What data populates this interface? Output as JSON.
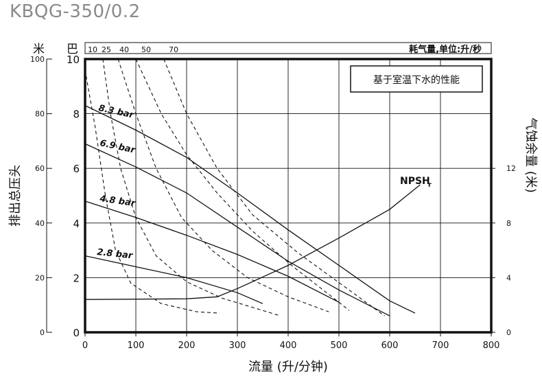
{
  "title": "KBQG-350/0.2",
  "chart_data": {
    "type": "line",
    "title": "KBQG-350/0.2",
    "xlabel": "流量 (升/分钟)",
    "ylabel_left_outer": "排出总压头",
    "ylabel_left_outer_unit": "米",
    "ylabel_left_inner_unit": "巴",
    "ylabel_right": "气蚀余量 (米)",
    "top_axis_label": "耗气量,单位:升/秒",
    "legend_note": "基于室温下水的性能",
    "xlim": [
      0,
      800
    ],
    "ylim_bar": [
      0,
      10
    ],
    "ylim_meter": [
      0,
      100
    ],
    "ylim_npsh": [
      0,
      20
    ],
    "x_ticks": [
      "0",
      "100",
      "200",
      "300",
      "400",
      "500",
      "600",
      "700",
      "800"
    ],
    "y_ticks_bar": [
      "0",
      "2",
      "4",
      "6",
      "8",
      "10"
    ],
    "y_ticks_meter": [
      "0",
      "20",
      "40",
      "60",
      "80",
      "100"
    ],
    "y_ticks_npsh": [
      "0",
      "4",
      "8",
      "12"
    ],
    "air_ticks": [
      "10",
      "25",
      "40",
      "50",
      "70"
    ],
    "pressure_series": [
      {
        "name": "8.3 bar",
        "points": [
          [
            0,
            8.3
          ],
          [
            100,
            7.4
          ],
          [
            200,
            6.4
          ],
          [
            300,
            5.1
          ],
          [
            400,
            3.75
          ],
          [
            500,
            2.45
          ],
          [
            600,
            1.15
          ],
          [
            650,
            0.7
          ]
        ]
      },
      {
        "name": "6.9 bar",
        "points": [
          [
            0,
            6.9
          ],
          [
            100,
            6.05
          ],
          [
            200,
            5.1
          ],
          [
            300,
            3.85
          ],
          [
            400,
            2.6
          ],
          [
            500,
            1.55
          ],
          [
            600,
            0.6
          ]
        ]
      },
      {
        "name": "4.8 bar",
        "points": [
          [
            0,
            4.8
          ],
          [
            100,
            4.2
          ],
          [
            200,
            3.55
          ],
          [
            300,
            2.85
          ],
          [
            400,
            2.05
          ],
          [
            500,
            1.1
          ]
        ]
      },
      {
        "name": "2.8 bar",
        "points": [
          [
            0,
            2.8
          ],
          [
            100,
            2.4
          ],
          [
            200,
            2.0
          ],
          [
            300,
            1.45
          ],
          [
            350,
            1.05
          ]
        ]
      }
    ],
    "air_series": [
      {
        "name": "10",
        "points": [
          [
            0,
            9.6
          ],
          [
            20,
            7.5
          ],
          [
            40,
            5.0
          ],
          [
            60,
            3.0
          ],
          [
            90,
            1.8
          ],
          [
            150,
            1.05
          ],
          [
            220,
            0.75
          ],
          [
            265,
            0.7
          ]
        ]
      },
      {
        "name": "25",
        "points": [
          [
            35,
            10
          ],
          [
            50,
            8.0
          ],
          [
            70,
            6.0
          ],
          [
            100,
            4.2
          ],
          [
            140,
            2.8
          ],
          [
            200,
            1.85
          ],
          [
            270,
            1.25
          ],
          [
            350,
            0.8
          ],
          [
            385,
            0.6
          ]
        ]
      },
      {
        "name": "40",
        "points": [
          [
            65,
            10
          ],
          [
            100,
            8.0
          ],
          [
            140,
            6.0
          ],
          [
            190,
            4.2
          ],
          [
            250,
            3.0
          ],
          [
            320,
            2.0
          ],
          [
            400,
            1.3
          ],
          [
            480,
            0.75
          ]
        ]
      },
      {
        "name": "50",
        "points": [
          [
            100,
            10
          ],
          [
            150,
            8.0
          ],
          [
            200,
            6.5
          ],
          [
            260,
            5.1
          ],
          [
            330,
            3.7
          ],
          [
            410,
            2.4
          ],
          [
            500,
            1.1
          ],
          [
            520,
            0.8
          ]
        ]
      },
      {
        "name": "70",
        "points": [
          [
            155,
            10
          ],
          [
            200,
            8.0
          ],
          [
            260,
            6.0
          ],
          [
            330,
            4.3
          ],
          [
            420,
            2.9
          ],
          [
            520,
            1.55
          ],
          [
            590,
            0.6
          ]
        ]
      }
    ],
    "npsh_series": {
      "name": "NPSHr",
      "label": "NPSH",
      "label_sub": "r",
      "points": [
        [
          0,
          2.4
        ],
        [
          200,
          2.45
        ],
        [
          260,
          2.6
        ],
        [
          300,
          3.2
        ],
        [
          400,
          4.9
        ],
        [
          500,
          6.9
        ],
        [
          600,
          9.0
        ],
        [
          660,
          10.8
        ]
      ]
    }
  }
}
